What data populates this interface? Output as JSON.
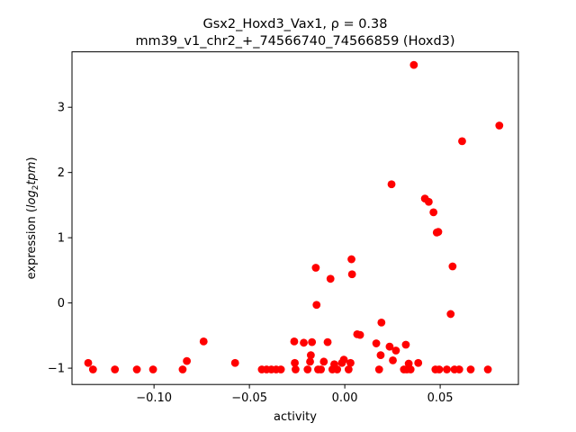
{
  "chart_data": {
    "type": "scatter",
    "title": "Gsx2_Hoxd3_Vax1, ρ = 0.38",
    "subtitle": "mm39_v1_chr2_+_74566740_74566859 (Hoxd3)",
    "xlabel": "activity",
    "ylabel_prefix": "expression (",
    "ylabel_math": "log",
    "ylabel_sub": "2",
    "ylabel_suffix_math": "tpm",
    "ylabel_close": ")",
    "xlim": [
      -0.143,
      0.091
    ],
    "ylim": [
      -1.25,
      3.85
    ],
    "xticks": [
      -0.1,
      -0.05,
      0.0,
      0.05
    ],
    "xtick_labels": [
      "−0.10",
      "−0.05",
      "0.00",
      "0.05"
    ],
    "yticks": [
      -1,
      0,
      1,
      2,
      3
    ],
    "ytick_labels": [
      "−1",
      "0",
      "1",
      "2",
      "3"
    ],
    "grid": false,
    "marker_color": "#ff0000",
    "points": [
      {
        "x": -0.1345,
        "y": -0.92
      },
      {
        "x": -0.132,
        "y": -1.02
      },
      {
        "x": -0.1205,
        "y": -1.02
      },
      {
        "x": -0.109,
        "y": -1.02
      },
      {
        "x": -0.1005,
        "y": -1.02
      },
      {
        "x": -0.085,
        "y": -1.02
      },
      {
        "x": -0.0828,
        "y": -0.89
      },
      {
        "x": -0.074,
        "y": -0.59
      },
      {
        "x": -0.0575,
        "y": -0.92
      },
      {
        "x": -0.0435,
        "y": -1.02
      },
      {
        "x": -0.041,
        "y": -1.02
      },
      {
        "x": -0.0385,
        "y": -1.02
      },
      {
        "x": -0.036,
        "y": -1.02
      },
      {
        "x": -0.0335,
        "y": -1.02
      },
      {
        "x": -0.0265,
        "y": -0.59
      },
      {
        "x": -0.0262,
        "y": -0.92
      },
      {
        "x": -0.0258,
        "y": -1.02
      },
      {
        "x": -0.0215,
        "y": -0.61
      },
      {
        "x": -0.0195,
        "y": -1.02
      },
      {
        "x": -0.0182,
        "y": -0.9
      },
      {
        "x": -0.0178,
        "y": -0.8
      },
      {
        "x": -0.0172,
        "y": -0.6
      },
      {
        "x": -0.0152,
        "y": 0.54
      },
      {
        "x": -0.0148,
        "y": -0.03
      },
      {
        "x": -0.014,
        "y": -1.02
      },
      {
        "x": -0.0125,
        "y": -1.02
      },
      {
        "x": -0.011,
        "y": -0.9
      },
      {
        "x": -0.009,
        "y": -0.6
      },
      {
        "x": -0.0075,
        "y": 0.37
      },
      {
        "x": -0.0065,
        "y": -1.02
      },
      {
        "x": -0.0055,
        "y": -0.94
      },
      {
        "x": -0.004,
        "y": -1.02
      },
      {
        "x": -0.0015,
        "y": -0.92
      },
      {
        "x": -0.0005,
        "y": -0.87
      },
      {
        "x": 0.002,
        "y": -1.02
      },
      {
        "x": 0.003,
        "y": -0.92
      },
      {
        "x": 0.0035,
        "y": 0.67
      },
      {
        "x": 0.0038,
        "y": 0.44
      },
      {
        "x": 0.0065,
        "y": -0.48
      },
      {
        "x": 0.008,
        "y": -0.49
      },
      {
        "x": 0.0165,
        "y": -0.62
      },
      {
        "x": 0.018,
        "y": -1.02
      },
      {
        "x": 0.0188,
        "y": -0.8
      },
      {
        "x": 0.0192,
        "y": -0.3
      },
      {
        "x": 0.0235,
        "y": -0.67
      },
      {
        "x": 0.0245,
        "y": 1.82
      },
      {
        "x": 0.0252,
        "y": -0.88
      },
      {
        "x": 0.0268,
        "y": -0.73
      },
      {
        "x": 0.031,
        "y": -1.02
      },
      {
        "x": 0.032,
        "y": -0.64
      },
      {
        "x": 0.0325,
        "y": -1.02
      },
      {
        "x": 0.0335,
        "y": -0.93
      },
      {
        "x": 0.0345,
        "y": -1.02
      },
      {
        "x": 0.0362,
        "y": 3.65
      },
      {
        "x": 0.0385,
        "y": -0.92
      },
      {
        "x": 0.042,
        "y": 1.6
      },
      {
        "x": 0.044,
        "y": 1.55
      },
      {
        "x": 0.0465,
        "y": 1.39
      },
      {
        "x": 0.0475,
        "y": -1.02
      },
      {
        "x": 0.0482,
        "y": 1.08
      },
      {
        "x": 0.049,
        "y": 1.09
      },
      {
        "x": 0.0495,
        "y": -1.02
      },
      {
        "x": 0.0535,
        "y": -1.02
      },
      {
        "x": 0.0555,
        "y": -0.17
      },
      {
        "x": 0.0565,
        "y": 0.56
      },
      {
        "x": 0.0575,
        "y": -1.02
      },
      {
        "x": 0.06,
        "y": -1.02
      },
      {
        "x": 0.0615,
        "y": 2.48
      },
      {
        "x": 0.066,
        "y": -1.02
      },
      {
        "x": 0.075,
        "y": -1.02
      },
      {
        "x": 0.081,
        "y": 2.72
      }
    ]
  }
}
